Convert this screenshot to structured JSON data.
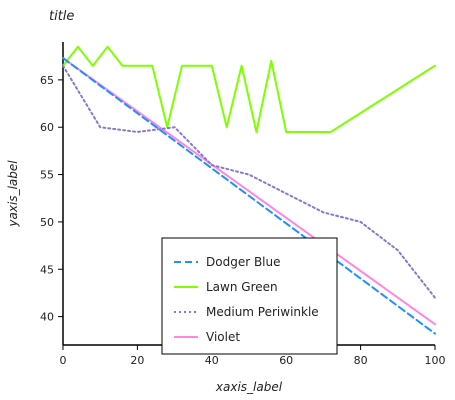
{
  "chart_data": {
    "type": "line",
    "title": "title",
    "xlabel": "xaxis_label",
    "ylabel": "yaxis_label",
    "xlim": [
      0,
      100
    ],
    "ylim": [
      37,
      69
    ],
    "x_ticks": [
      0,
      20,
      40,
      60,
      80,
      100
    ],
    "y_ticks": [
      40,
      45,
      50,
      55,
      60,
      65
    ],
    "grid": false,
    "legend_position": "bottom-center",
    "series": [
      {
        "name": "Lawn Green",
        "color": "#7fff00",
        "dash": "solid",
        "x": [
          0,
          4,
          8,
          12,
          16,
          20,
          24,
          28,
          32,
          36,
          40,
          44,
          48,
          52,
          56,
          60,
          64,
          68,
          72,
          76,
          80,
          84,
          88,
          92,
          96,
          100
        ],
        "y": [
          66.5,
          68.5,
          66.5,
          68.5,
          66.5,
          66.5,
          66.5,
          60,
          66.5,
          66.5,
          66.5,
          60,
          66.5,
          59.5,
          67,
          59.5,
          59.5,
          59.5,
          59.5,
          60.5,
          61.5,
          62.5,
          63.5,
          64.5,
          65.5,
          66.5
        ]
      },
      {
        "name": "Violet",
        "color": "#ff85e0",
        "dash": "solid",
        "x": [
          0,
          100
        ],
        "y": [
          67.3,
          39.2
        ]
      },
      {
        "name": "Dodger Blue",
        "color": "#1e90ff",
        "dash": "dash",
        "x": [
          0,
          100
        ],
        "y": [
          67.3,
          38.2
        ]
      },
      {
        "name": "Medium Periwinkle",
        "color": "#8878d0",
        "dash": "dot",
        "x": [
          0,
          10,
          20,
          30,
          40,
          50,
          60,
          70,
          80,
          90,
          100
        ],
        "y": [
          66.5,
          60,
          59.5,
          60,
          56,
          55,
          53,
          51,
          50,
          47,
          42
        ]
      }
    ]
  }
}
